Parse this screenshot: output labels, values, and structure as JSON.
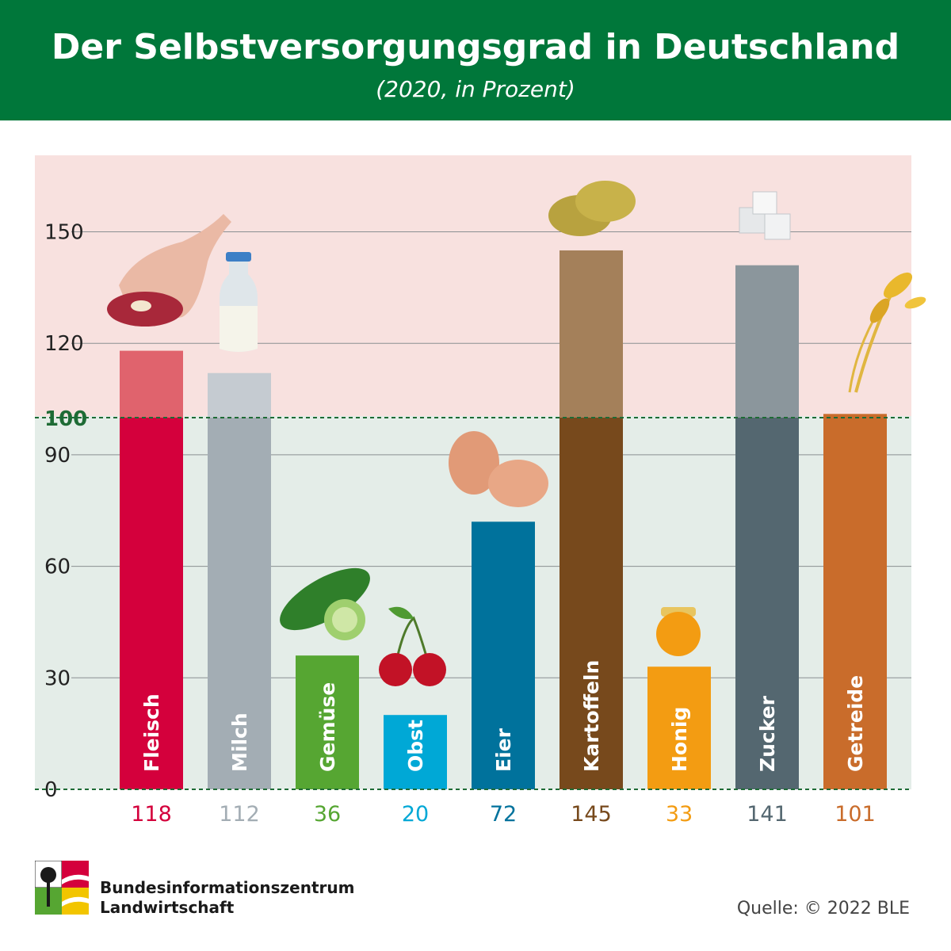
{
  "header": {
    "title": "Der Selbstversorgungsgrad in Deutschland",
    "subtitle": "(2020, in Prozent)"
  },
  "chart_data": {
    "type": "bar",
    "categories": [
      "Fleisch",
      "Milch",
      "Gemüse",
      "Obst",
      "Eier",
      "Kartoffeln",
      "Honig",
      "Zucker",
      "Getreide"
    ],
    "values": [
      118,
      112,
      36,
      20,
      72,
      145,
      33,
      141,
      101
    ],
    "value_labels": [
      "118",
      "112",
      "36",
      "20",
      "72",
      "145",
      "33",
      "141",
      "101"
    ],
    "yticks": [
      0,
      30,
      60,
      90,
      120,
      150
    ],
    "ytick_labels": [
      "0",
      "30",
      "60",
      "90",
      "120",
      "150"
    ],
    "reference_line": {
      "value": 100,
      "label": "100",
      "color": "#1e6b35"
    },
    "ylim": [
      0,
      170
    ],
    "grid": true,
    "colors": {
      "below_100": [
        "#d4003c",
        "#a3adb4",
        "#56a632",
        "#00a8d6",
        "#00729c",
        "#77491c",
        "#f39c12",
        "#546770",
        "#c96c2b"
      ],
      "above_100": [
        "#e0636d",
        "#c5cbd1",
        "#56a632",
        "#00a8d6",
        "#00729c",
        "#a4805a",
        "#f39c12",
        "#8b969c",
        "#c96c2b"
      ],
      "value_label": [
        "#d4003c",
        "#a3adb4",
        "#56a632",
        "#00a8d6",
        "#00729c",
        "#77491c",
        "#f39c12",
        "#546770",
        "#c96c2b"
      ],
      "background_above": "#f8e1df",
      "background_below": "#e4ede8"
    },
    "icons": [
      "meat-leg-icon",
      "milk-bottle-icon",
      "cucumber-icon",
      "cherries-icon",
      "eggs-icon",
      "potatoes-icon",
      "honey-jar-icon",
      "sugar-cubes-icon",
      "wheat-ears-icon"
    ]
  },
  "footer": {
    "org_line1": "Bundesinformationszentrum",
    "org_line2": "Landwirtschaft",
    "source": "Quelle: © 2022 BLE"
  }
}
